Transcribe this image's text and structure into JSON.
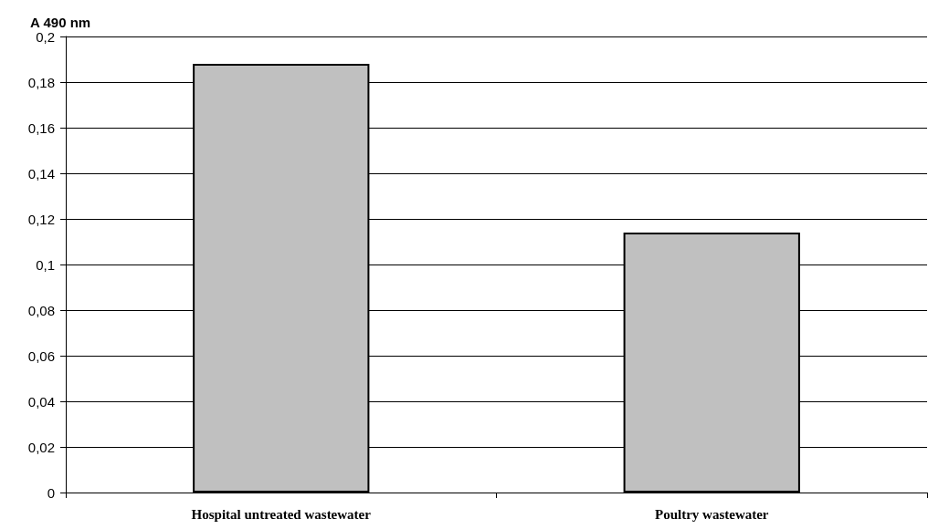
{
  "chart_data": {
    "type": "bar",
    "ylabel": "A 490 nm",
    "categories": [
      "Hospital untreated wastewater",
      "Poultry wastewater"
    ],
    "values": [
      0.188,
      0.114
    ],
    "color": "#c0c0c0",
    "ylim": [
      0,
      0.2
    ],
    "yticks": [
      {
        "value": 0,
        "label": "0"
      },
      {
        "value": 0.02,
        "label": "0,02"
      },
      {
        "value": 0.04,
        "label": "0,04"
      },
      {
        "value": 0.06,
        "label": "0,06"
      },
      {
        "value": 0.08,
        "label": "0,08"
      },
      {
        "value": 0.1,
        "label": "0,1"
      },
      {
        "value": 0.12,
        "label": "0,12"
      },
      {
        "value": 0.14,
        "label": "0,14"
      },
      {
        "value": 0.16,
        "label": "0,16"
      },
      {
        "value": 0.18,
        "label": "0,18"
      },
      {
        "value": 0.2,
        "label": "0,2"
      }
    ],
    "grid": "y"
  }
}
